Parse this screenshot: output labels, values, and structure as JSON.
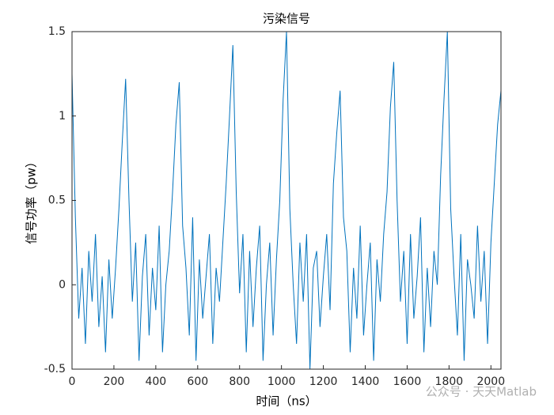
{
  "chart_data": {
    "type": "line",
    "title": "污染信号",
    "x_label": "时间（ns）",
    "y_label": "信号功率（pw）",
    "watermark": "公众号 · 天天Matlab",
    "x": [
      0,
      16,
      32,
      48,
      64,
      80,
      96,
      112,
      128,
      144,
      160,
      176,
      192,
      208,
      224,
      240,
      256,
      272,
      288,
      304,
      320,
      336,
      352,
      368,
      384,
      400,
      416,
      432,
      448,
      464,
      480,
      496,
      512,
      528,
      544,
      560,
      576,
      592,
      608,
      624,
      640,
      656,
      672,
      688,
      704,
      720,
      736,
      752,
      768,
      784,
      800,
      816,
      832,
      848,
      864,
      880,
      896,
      912,
      928,
      944,
      960,
      976,
      992,
      1008,
      1024,
      1040,
      1056,
      1072,
      1088,
      1104,
      1120,
      1136,
      1152,
      1168,
      1184,
      1200,
      1216,
      1232,
      1248,
      1264,
      1280,
      1296,
      1312,
      1328,
      1344,
      1360,
      1376,
      1392,
      1408,
      1424,
      1440,
      1456,
      1472,
      1488,
      1504,
      1520,
      1536,
      1552,
      1568,
      1584,
      1600,
      1616,
      1632,
      1648,
      1664,
      1680,
      1696,
      1712,
      1728,
      1744,
      1760,
      1776,
      1792,
      1808,
      1824,
      1840,
      1856,
      1872,
      1888,
      1904,
      1920,
      1936,
      1952,
      1968,
      1984,
      2000,
      2016,
      2032,
      2048
    ],
    "series": [
      {
        "color": "#0072bd",
        "values": [
          1.25,
          0.4,
          -0.2,
          0.1,
          -0.35,
          0.2,
          -0.1,
          0.3,
          -0.25,
          0.05,
          -0.4,
          0.15,
          -0.2,
          0.1,
          0.45,
          0.85,
          1.22,
          0.5,
          -0.1,
          0.25,
          -0.45,
          0.05,
          0.3,
          -0.3,
          0.1,
          -0.15,
          0.35,
          -0.4,
          0.0,
          0.2,
          0.55,
          0.95,
          1.2,
          0.35,
          0.1,
          -0.3,
          0.4,
          -0.45,
          0.15,
          -0.2,
          0.05,
          0.3,
          -0.35,
          0.1,
          -0.1,
          0.25,
          0.6,
          1.0,
          1.42,
          0.55,
          -0.05,
          0.3,
          -0.4,
          0.2,
          -0.25,
          0.1,
          0.35,
          -0.45,
          0.0,
          0.25,
          -0.3,
          0.15,
          0.5,
          1.1,
          1.5,
          0.45,
          0.0,
          -0.35,
          0.25,
          -0.1,
          0.3,
          -0.5,
          0.1,
          0.2,
          -0.25,
          0.05,
          0.3,
          -0.15,
          0.6,
          0.9,
          1.15,
          0.4,
          0.2,
          -0.4,
          0.1,
          -0.2,
          0.35,
          -0.3,
          0.0,
          0.25,
          -0.45,
          0.15,
          -0.1,
          0.3,
          0.55,
          1.05,
          1.32,
          0.5,
          -0.1,
          0.2,
          -0.35,
          0.3,
          -0.2,
          0.05,
          0.4,
          -0.4,
          0.1,
          -0.25,
          0.2,
          0.0,
          0.65,
          1.1,
          1.5,
          0.45,
          0.05,
          -0.3,
          0.3,
          -0.45,
          0.15,
          0.0,
          -0.2,
          0.35,
          -0.1,
          0.2,
          -0.35,
          0.25,
          0.6,
          0.95,
          1.15
        ]
      }
    ],
    "xlim": [
      0,
      2048
    ],
    "xticks": [
      0,
      200,
      400,
      600,
      800,
      1000,
      1200,
      1400,
      1600,
      1800,
      2000
    ],
    "ylim": [
      -0.5,
      1.5
    ],
    "yticks": [
      -0.5,
      0,
      0.5,
      1,
      1.5
    ]
  }
}
